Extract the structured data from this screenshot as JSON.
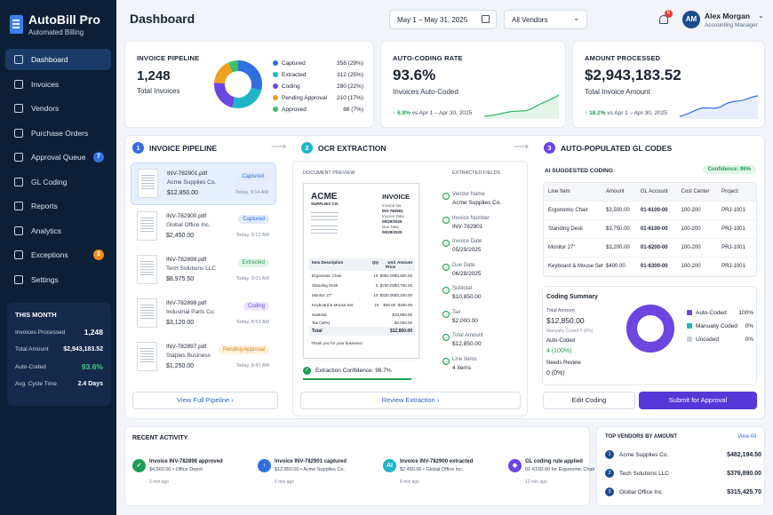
{
  "app": {
    "name": "AutoBill Pro",
    "tagline": "Automated Billing"
  },
  "nav": [
    {
      "label": "Dashboard",
      "icon": "grid-icon",
      "active": true
    },
    {
      "label": "Invoices",
      "icon": "file-icon"
    },
    {
      "label": "Vendors",
      "icon": "users-icon"
    },
    {
      "label": "Purchase Orders",
      "icon": "clipboard-icon"
    },
    {
      "label": "Approval Queue",
      "icon": "check-icon",
      "badge": "7",
      "badge_color": "#2f6fe0"
    },
    {
      "label": "GL Coding",
      "icon": "book-icon"
    },
    {
      "label": "Reports",
      "icon": "report-icon"
    },
    {
      "label": "Analytics",
      "icon": "chart-icon"
    },
    {
      "label": "Exceptions",
      "icon": "warning-icon",
      "badge": "3",
      "badge_color": "#f08c1a"
    },
    {
      "label": "Settings",
      "icon": "gear-icon"
    }
  ],
  "month": {
    "title": "THIS MONTH",
    "rows": [
      {
        "label": "Invoices Processed",
        "value": "1,248"
      },
      {
        "label": "Total Amount",
        "value": "$2,943,183.52"
      },
      {
        "label": "Auto-Coded",
        "value": "93.6%"
      },
      {
        "label": "Avg. Cycle Time",
        "value": "2.4 Days"
      }
    ]
  },
  "header": {
    "title": "Dashboard",
    "date_range": "May 1 – May 31, 2025",
    "vendor_filter": "All Vendors",
    "notif_count": "6",
    "user_initials": "AM",
    "user_name": "Alex Morgan",
    "user_role": "Accounting Manager"
  },
  "kpi": {
    "pipeline": {
      "title": "INVOICE PIPELINE",
      "value": "1,248",
      "sub": "Total Invoices",
      "legend": [
        {
          "label": "Captured",
          "value": "358 (29%)",
          "color": "#2f6fe0",
          "frac": 0.29
        },
        {
          "label": "Extracted",
          "value": "312 (25%)",
          "color": "#1fb5c9",
          "frac": 0.25
        },
        {
          "label": "Coding",
          "value": "280 (22%)",
          "color": "#6b46e0",
          "frac": 0.22
        },
        {
          "label": "Pending Approval",
          "value": "210 (17%)",
          "color": "#f0a020",
          "frac": 0.17
        },
        {
          "label": "Approved",
          "value": "88 (7%)",
          "color": "#3fbf6a",
          "frac": 0.07
        }
      ]
    },
    "coding": {
      "title": "AUTO-CODING RATE",
      "value": "93.6%",
      "sub": "Invoices Auto-Coded",
      "delta": "6.8%",
      "period": "vs Apr 1 – Apr 30, 2025"
    },
    "amount": {
      "title": "AMOUNT PROCESSED",
      "value": "$2,943,183.52",
      "sub": "Total Invoice Amount",
      "delta": "18.2%",
      "period": "vs Apr 1 – Apr 30, 2025"
    }
  },
  "steps": {
    "s1": {
      "num": "1",
      "label": "INVOICE PIPELINE"
    },
    "s2": {
      "num": "2",
      "label": "OCR EXTRACTION"
    },
    "s3": {
      "num": "3",
      "label": "AUTO-POPULATED GL CODES"
    }
  },
  "invoices": [
    {
      "file": "INV-782901.pdf",
      "vendor": "Acme Supplies Co.",
      "amount": "$12,850.00",
      "status": "Captured",
      "time": "Today, 9:14 AM"
    },
    {
      "file": "INV-782900.pdf",
      "vendor": "Global Office Inc.",
      "amount": "$2,450.00",
      "status": "Captured",
      "time": "Today, 9:12 AM"
    },
    {
      "file": "INV-782899.pdf",
      "vendor": "Tech Solutions LLC",
      "amount": "$8,975.50",
      "status": "Extracted",
      "time": "Today, 9:01 AM"
    },
    {
      "file": "INV-782898.pdf",
      "vendor": "Industrial Parts Co.",
      "amount": "$3,120.00",
      "status": "Coding",
      "time": "Today, 8:53 AM"
    },
    {
      "file": "INV-782897.pdf",
      "vendor": "Staples Business",
      "amount": "$1,250.00",
      "status": "Pending Approval",
      "time": "Today, 8:41 AM"
    }
  ],
  "pipeline_btn": "View Full Pipeline",
  "ocr": {
    "doc_preview": "DOCUMENT PREVIEW",
    "extracted": "EXTRACTED FIELDS",
    "logo_a": "ACME",
    "logo_b": "SUPPLIES CO.",
    "doc_title": "INVOICE",
    "doc_meta": [
      "Invoice No.",
      "INV-782901",
      "Invoice Date",
      "05/29/2025",
      "Due Date",
      "06/28/2025"
    ],
    "table_head": [
      "Item Description",
      "Qty",
      "Unit Price",
      "Amount"
    ],
    "table_rows": [
      [
        "Ergonomic Chair",
        "10",
        "$350.00",
        "$3,500.00"
      ],
      [
        "Standing Desk",
        "5",
        "$750.00",
        "$3,750.00"
      ],
      [
        "Monitor 27\"",
        "10",
        "$320.00",
        "$3,200.00"
      ],
      [
        "Keyboard & Mouse Set",
        "10",
        "$40.00",
        "$400.00"
      ]
    ],
    "subtotal_l": "Subtotal",
    "subtotal": "$10,850.00",
    "tax_l": "Tax (18%)",
    "tax": "$2,000.00",
    "total_l": "Total",
    "total": "$12,850.00",
    "thanks": "Thank you for your business!",
    "fields": [
      {
        "label": "Vendor Name",
        "value": "Acme Supplies Co."
      },
      {
        "label": "Invoice Number",
        "value": "INV-782901"
      },
      {
        "label": "Invoice Date",
        "value": "05/29/2025"
      },
      {
        "label": "Due Date",
        "value": "06/28/2025"
      },
      {
        "label": "Subtotal",
        "value": "$10,850.00"
      },
      {
        "label": "Tax",
        "value": "$2,000.00"
      },
      {
        "label": "Total Amount",
        "value": "$12,850.00"
      },
      {
        "label": "Line Items",
        "value": "4 items"
      }
    ],
    "confidence": "Extraction Confidence: 98.7%",
    "confidence_frac": 0.987,
    "review_btn": "Review Extraction"
  },
  "gl": {
    "title": "AI SUGGESTED CODING",
    "confidence": "Confidence: 96%",
    "head": [
      "Line Item",
      "Amount",
      "GL Account",
      "Cost Center",
      "Project"
    ],
    "rows": [
      [
        "Ergonomic Chair",
        "$3,500.00",
        "01-6100-00",
        "100-200",
        "PRJ-1001"
      ],
      [
        "Standing Desk",
        "$3,750.00",
        "01-6100-00",
        "100-200",
        "PRJ-1001"
      ],
      [
        "Monitor 27\"",
        "$3,200.00",
        "01-6200-00",
        "100-200",
        "PRJ-1001"
      ],
      [
        "Keyboard & Mouse Set",
        "$400.00",
        "01-6300-00",
        "100-200",
        "PRJ-1001"
      ]
    ],
    "summary_title": "Coding Summary",
    "total_l": "Total Amount",
    "total": "$12,850.00",
    "manual_l": "Manually Coded",
    "manual": "0 (0%)",
    "auto_l": "Auto-Coded",
    "auto": "4 (100%)",
    "review_l": "Needs Review",
    "review": "0 (0%)",
    "legend": [
      {
        "label": "Auto-Coded",
        "value": "100%",
        "color": "#6b46e0"
      },
      {
        "label": "Manually Coded",
        "value": "0%",
        "color": "#1fb5c9"
      },
      {
        "label": "Uncoded",
        "value": "0%",
        "color": "#c9ced6"
      }
    ],
    "edit_btn": "Edit Coding",
    "submit_btn": "Submit for Approval"
  },
  "activity": {
    "title": "RECENT ACTIVITY",
    "items": [
      {
        "title": "Invoice INV-782896 approved",
        "sub": "$4,560.00 • Office Depot",
        "time": "2 min ago",
        "color": "#1f9d55",
        "icon": "check-icon",
        "glyph": "✓"
      },
      {
        "title": "Invoice INV-782901 captured",
        "sub": "$12,850.00 • Acme Supplies Co.",
        "time": "5 min ago",
        "color": "#2f6fe0",
        "icon": "upload-icon",
        "glyph": "↑"
      },
      {
        "title": "Invoice INV-782900 extracted",
        "sub": "$2,450.00 • Global Office Inc.",
        "time": "8 min ago",
        "color": "#1fb5c9",
        "icon": "ai-icon",
        "glyph": "AI"
      },
      {
        "title": "GL coding rule applied",
        "sub": "01-6100-00 for Ergonomic Chair",
        "time": "12 min ago",
        "color": "#6b46e0",
        "icon": "tag-icon",
        "glyph": "◈"
      }
    ]
  },
  "vendors": {
    "title": "TOP VENDORS BY AMOUNT",
    "view_all": "View All",
    "items": [
      {
        "num": "1",
        "name": "Acme Supplies Co.",
        "amount": "$482,194.50"
      },
      {
        "num": "2",
        "name": "Tech Solutions LLC",
        "amount": "$376,890.00"
      },
      {
        "num": "3",
        "name": "Global Office Inc.",
        "amount": "$315,425.70"
      }
    ]
  }
}
